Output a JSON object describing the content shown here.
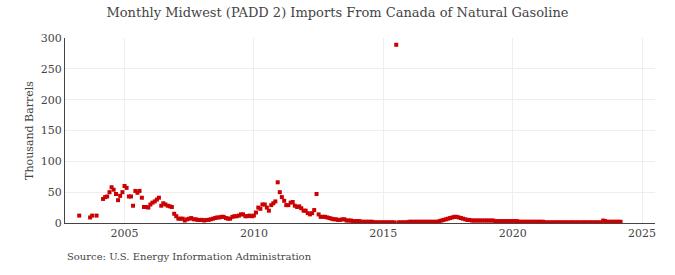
{
  "chart_data": {
    "type": "scatter",
    "title": "Monthly Midwest (PADD 2) Imports From Canada of Natural Gasoline",
    "ylabel": "Thousand Barrels",
    "annotations": [
      "Source: U.S. Energy Information Administration"
    ],
    "color": "#cc0000",
    "marker": "square",
    "grid": true,
    "xlim": [
      2002.7,
      2025.5
    ],
    "xticks": [
      2005,
      2010,
      2015,
      2020,
      2025
    ],
    "ylim": [
      0,
      300
    ],
    "yticks": [
      0,
      50,
      100,
      150,
      200,
      250,
      300
    ],
    "x": [
      2003.25,
      2003.67,
      2003.75,
      2003.92,
      2004.17,
      2004.25,
      2004.33,
      2004.42,
      2004.5,
      2004.58,
      2004.67,
      2004.75,
      2004.83,
      2004.92,
      2005.0,
      2005.08,
      2005.17,
      2005.25,
      2005.33,
      2005.42,
      2005.5,
      2005.58,
      2005.67,
      2005.75,
      2005.83,
      2005.92,
      2006.0,
      2006.08,
      2006.17,
      2006.25,
      2006.33,
      2006.42,
      2006.5,
      2006.58,
      2006.67,
      2006.75,
      2006.83,
      2006.92,
      2007.0,
      2007.08,
      2007.17,
      2007.25,
      2007.33,
      2007.42,
      2007.5,
      2007.58,
      2007.67,
      2007.75,
      2007.83,
      2007.92,
      2008.0,
      2008.08,
      2008.17,
      2008.25,
      2008.33,
      2008.42,
      2008.5,
      2008.58,
      2008.67,
      2008.75,
      2008.83,
      2008.92,
      2009.0,
      2009.08,
      2009.17,
      2009.25,
      2009.33,
      2009.42,
      2009.5,
      2009.58,
      2009.67,
      2009.75,
      2009.83,
      2009.92,
      2010.0,
      2010.08,
      2010.17,
      2010.25,
      2010.33,
      2010.42,
      2010.5,
      2010.58,
      2010.67,
      2010.75,
      2010.83,
      2010.92,
      2011.0,
      2011.08,
      2011.17,
      2011.25,
      2011.33,
      2011.42,
      2011.5,
      2011.58,
      2011.67,
      2011.75,
      2011.83,
      2011.92,
      2012.0,
      2012.08,
      2012.17,
      2012.25,
      2012.33,
      2012.42,
      2012.5,
      2012.58,
      2012.67,
      2012.75,
      2012.83,
      2012.92,
      2013.0,
      2013.08,
      2013.17,
      2013.25,
      2013.33,
      2013.42,
      2013.5,
      2013.58,
      2013.67,
      2013.75,
      2013.83,
      2013.92,
      2014.0,
      2014.08,
      2014.17,
      2014.25,
      2014.33,
      2014.42,
      2014.5,
      2014.58,
      2014.67,
      2014.75,
      2014.83,
      2014.92,
      2015.0,
      2015.08,
      2015.17,
      2015.25,
      2015.33,
      2015.42,
      2015.5,
      2015.58,
      2015.67,
      2015.75,
      2015.83,
      2015.92,
      2016.0,
      2016.08,
      2016.17,
      2016.25,
      2016.33,
      2016.42,
      2016.5,
      2016.58,
      2016.67,
      2016.75,
      2016.83,
      2016.92,
      2017.0,
      2017.08,
      2017.17,
      2017.25,
      2017.33,
      2017.42,
      2017.5,
      2017.58,
      2017.67,
      2017.75,
      2017.83,
      2017.92,
      2018.0,
      2018.08,
      2018.17,
      2018.25,
      2018.33,
      2018.42,
      2018.5,
      2018.58,
      2018.67,
      2018.75,
      2018.83,
      2018.92,
      2019.0,
      2019.08,
      2019.17,
      2019.25,
      2019.33,
      2019.42,
      2019.5,
      2019.58,
      2019.67,
      2019.75,
      2019.83,
      2019.92,
      2020.0,
      2020.08,
      2020.17,
      2020.25,
      2020.33,
      2020.42,
      2020.5,
      2020.58,
      2020.67,
      2020.75,
      2020.83,
      2020.92,
      2021.0,
      2021.08,
      2021.17,
      2021.25,
      2021.33,
      2021.42,
      2021.5,
      2021.58,
      2021.67,
      2021.75,
      2021.83,
      2021.92,
      2022.0,
      2022.08,
      2022.17,
      2022.25,
      2022.33,
      2022.42,
      2022.5,
      2022.58,
      2022.67,
      2022.75,
      2022.83,
      2022.92,
      2023.0,
      2023.08,
      2023.17,
      2023.25,
      2023.33,
      2023.42,
      2023.5,
      2023.58,
      2023.67,
      2023.75,
      2023.83,
      2023.92,
      2024.0,
      2024.08,
      2024.17
    ],
    "values": [
      12,
      9,
      12,
      12,
      39,
      42,
      43,
      50,
      58,
      54,
      47,
      37,
      44,
      50,
      60,
      57,
      43,
      43,
      28,
      52,
      49,
      52,
      41,
      26,
      26,
      25,
      30,
      33,
      35,
      38,
      41,
      28,
      32,
      30,
      28,
      27,
      26,
      15,
      11,
      7,
      7,
      7,
      4,
      6,
      7,
      8,
      6,
      6,
      5,
      5,
      5,
      4,
      5,
      5,
      6,
      7,
      8,
      9,
      9,
      10,
      10,
      8,
      7,
      7,
      10,
      11,
      11,
      12,
      14,
      14,
      11,
      11,
      12,
      11,
      12,
      17,
      25,
      23,
      30,
      30,
      25,
      20,
      29,
      32,
      35,
      66,
      50,
      42,
      36,
      29,
      29,
      33,
      34,
      28,
      26,
      27,
      24,
      20,
      20,
      16,
      14,
      16,
      21,
      47,
      14,
      10,
      10,
      10,
      9,
      8,
      7,
      6,
      6,
      5,
      5,
      6,
      6,
      4,
      4,
      4,
      3,
      3,
      3,
      3,
      2,
      2,
      2,
      2,
      2,
      2,
      1,
      1,
      1,
      1,
      1,
      1,
      1,
      1,
      1,
      1,
      289,
      1,
      1,
      1,
      1,
      1,
      2,
      2,
      2,
      2,
      2,
      2,
      2,
      2,
      2,
      2,
      2,
      2,
      2,
      2,
      3,
      4,
      5,
      6,
      7,
      8,
      9,
      10,
      10,
      9,
      8,
      7,
      6,
      5,
      5,
      4,
      4,
      4,
      4,
      4,
      4,
      4,
      4,
      4,
      4,
      4,
      3,
      3,
      3,
      3,
      3,
      3,
      3,
      3,
      3,
      3,
      3,
      2,
      2,
      2,
      2,
      2,
      2,
      2,
      2,
      2,
      2,
      2,
      2,
      1,
      1,
      1,
      1,
      1,
      1,
      1,
      1,
      1,
      1,
      1,
      1,
      1,
      1,
      1,
      1,
      1,
      1,
      1,
      1,
      1,
      1,
      1,
      1,
      1,
      1,
      1,
      4,
      3,
      2,
      2,
      2,
      2,
      2,
      2,
      2
    ]
  }
}
